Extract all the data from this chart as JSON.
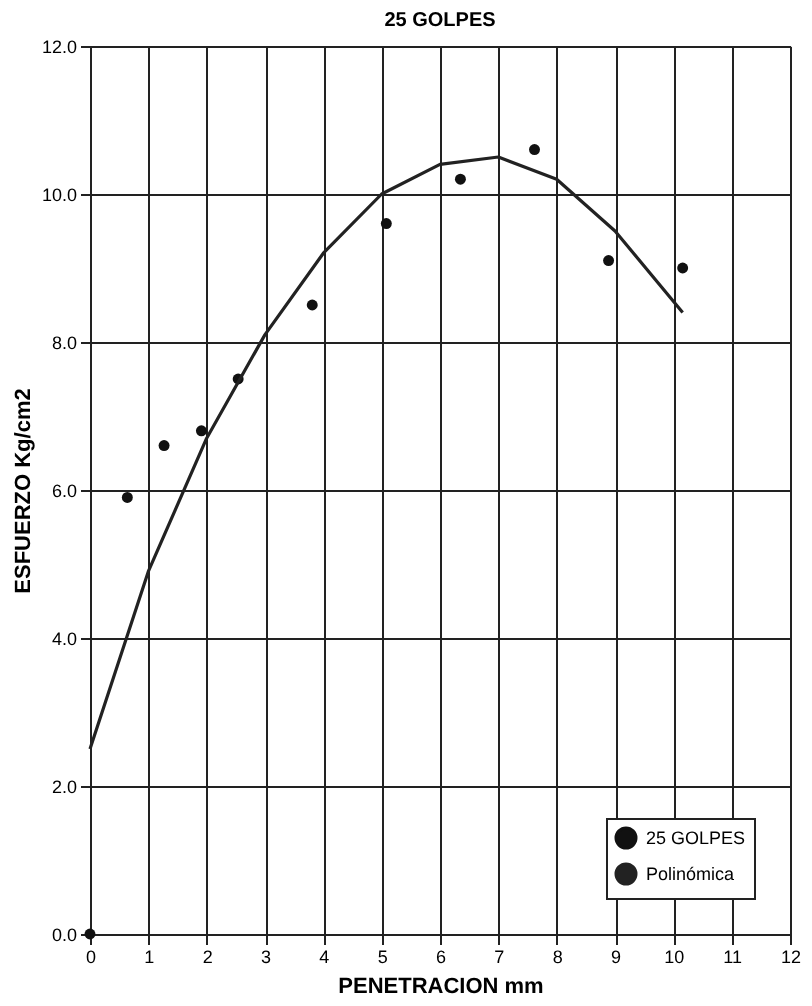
{
  "chart_data": {
    "type": "scatter",
    "title": "25 GOLPES",
    "xlabel": "PENETRACION mm",
    "ylabel": "ESFUERZO Kg/cm2",
    "series": [
      {
        "name": "25 GOLPES",
        "color": "#111111",
        "marker": "circle",
        "x": [
          0,
          0.64,
          1.27,
          1.91,
          2.54,
          3.81,
          5.08,
          6.35,
          7.62,
          8.89,
          10.16
        ],
        "values": [
          0,
          5.9,
          6.6,
          6.8,
          7.5,
          8.5,
          9.6,
          10.2,
          10.6,
          9.1,
          9.0
        ]
      },
      {
        "name": "Polinómica",
        "type": "line",
        "color": "#222222",
        "marker": "none",
        "line_style": "solid",
        "x": [
          0,
          1,
          2,
          3,
          4,
          5,
          6,
          7,
          8,
          9,
          10.16
        ],
        "values": [
          2.5,
          4.9,
          6.7,
          8.1,
          9.2,
          10.0,
          10.4,
          10.5,
          10.2,
          9.5,
          8.4
        ]
      }
    ],
    "xlim": [
      0,
      12
    ],
    "xticks": [
      0,
      1,
      2,
      3,
      4,
      5,
      6,
      7,
      8,
      9,
      10,
      11,
      12
    ],
    "ylim": [
      0,
      12
    ],
    "yticks": [
      {
        "value": 0,
        "label": "0.0"
      },
      {
        "value": 2,
        "label": "2.0"
      },
      {
        "value": 4,
        "label": "4.0"
      },
      {
        "value": 6,
        "label": "6.0"
      },
      {
        "value": 8,
        "label": "8.0"
      },
      {
        "value": 10,
        "label": "10.0"
      },
      {
        "value": 12,
        "label": "12.0"
      }
    ],
    "grid": true,
    "legend": "bottom right"
  }
}
